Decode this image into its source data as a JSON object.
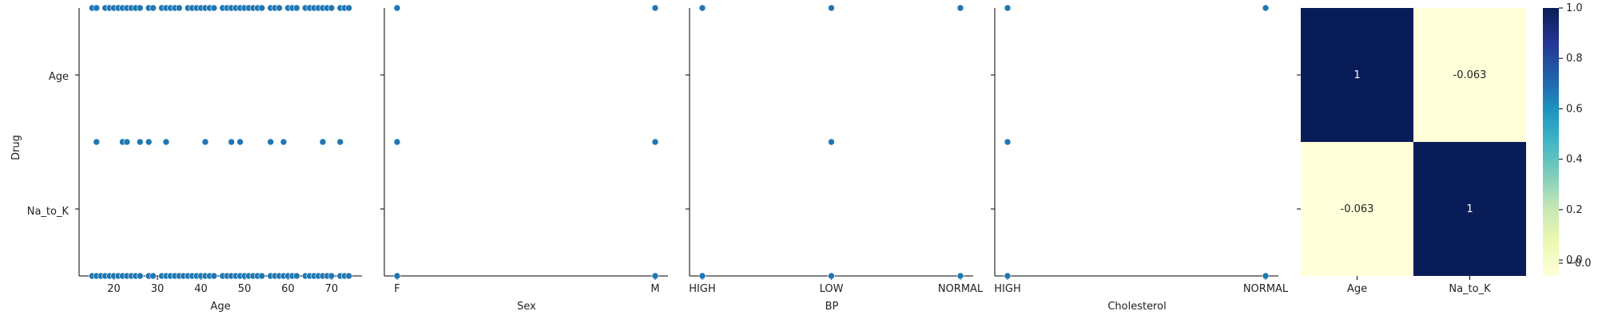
{
  "chart_data": {
    "type": "scatter",
    "ylabel": "Drug",
    "y_tick_labels": [
      "Age",
      "Na_to_K"
    ],
    "ylim": [
      -0.5,
      1.5
    ],
    "colors": {
      "point": "#1f77b4"
    },
    "panels": [
      {
        "xlabel": "Age",
        "x_type": "numeric",
        "xlim": [
          12,
          77
        ],
        "xticks": [
          20,
          30,
          40,
          50,
          60,
          70
        ],
        "points": [
          {
            "x": 15,
            "y": -0.5
          },
          {
            "x": 16,
            "y": -0.5
          },
          {
            "x": 17,
            "y": -0.5
          },
          {
            "x": 18,
            "y": -0.5
          },
          {
            "x": 19,
            "y": -0.5
          },
          {
            "x": 20,
            "y": -0.5
          },
          {
            "x": 21,
            "y": -0.5
          },
          {
            "x": 22,
            "y": -0.5
          },
          {
            "x": 23,
            "y": -0.5
          },
          {
            "x": 24,
            "y": -0.5
          },
          {
            "x": 25,
            "y": -0.5
          },
          {
            "x": 26,
            "y": -0.5
          },
          {
            "x": 28,
            "y": -0.5
          },
          {
            "x": 29,
            "y": -0.5
          },
          {
            "x": 31,
            "y": -0.5
          },
          {
            "x": 32,
            "y": -0.5
          },
          {
            "x": 33,
            "y": -0.5
          },
          {
            "x": 34,
            "y": -0.5
          },
          {
            "x": 35,
            "y": -0.5
          },
          {
            "x": 36,
            "y": -0.5
          },
          {
            "x": 37,
            "y": -0.5
          },
          {
            "x": 38,
            "y": -0.5
          },
          {
            "x": 39,
            "y": -0.5
          },
          {
            "x": 40,
            "y": -0.5
          },
          {
            "x": 41,
            "y": -0.5
          },
          {
            "x": 42,
            "y": -0.5
          },
          {
            "x": 43,
            "y": -0.5
          },
          {
            "x": 45,
            "y": -0.5
          },
          {
            "x": 46,
            "y": -0.5
          },
          {
            "x": 47,
            "y": -0.5
          },
          {
            "x": 48,
            "y": -0.5
          },
          {
            "x": 49,
            "y": -0.5
          },
          {
            "x": 50,
            "y": -0.5
          },
          {
            "x": 51,
            "y": -0.5
          },
          {
            "x": 52,
            "y": -0.5
          },
          {
            "x": 53,
            "y": -0.5
          },
          {
            "x": 54,
            "y": -0.5
          },
          {
            "x": 56,
            "y": -0.5
          },
          {
            "x": 57,
            "y": -0.5
          },
          {
            "x": 58,
            "y": -0.5
          },
          {
            "x": 59,
            "y": -0.5
          },
          {
            "x": 60,
            "y": -0.5
          },
          {
            "x": 61,
            "y": -0.5
          },
          {
            "x": 62,
            "y": -0.5
          },
          {
            "x": 64,
            "y": -0.5
          },
          {
            "x": 65,
            "y": -0.5
          },
          {
            "x": 66,
            "y": -0.5
          },
          {
            "x": 67,
            "y": -0.5
          },
          {
            "x": 68,
            "y": -0.5
          },
          {
            "x": 69,
            "y": -0.5
          },
          {
            "x": 70,
            "y": -0.5
          },
          {
            "x": 72,
            "y": -0.5
          },
          {
            "x": 73,
            "y": -0.5
          },
          {
            "x": 74,
            "y": -0.5
          },
          {
            "x": 16,
            "y": 0.5
          },
          {
            "x": 22,
            "y": 0.5
          },
          {
            "x": 23,
            "y": 0.5
          },
          {
            "x": 26,
            "y": 0.5
          },
          {
            "x": 28,
            "y": 0.5
          },
          {
            "x": 32,
            "y": 0.5
          },
          {
            "x": 41,
            "y": 0.5
          },
          {
            "x": 47,
            "y": 0.5
          },
          {
            "x": 49,
            "y": 0.5
          },
          {
            "x": 56,
            "y": 0.5
          },
          {
            "x": 59,
            "y": 0.5
          },
          {
            "x": 68,
            "y": 0.5
          },
          {
            "x": 72,
            "y": 0.5
          },
          {
            "x": 15,
            "y": 1.5
          },
          {
            "x": 16,
            "y": 1.5
          },
          {
            "x": 18,
            "y": 1.5
          },
          {
            "x": 19,
            "y": 1.5
          },
          {
            "x": 20,
            "y": 1.5
          },
          {
            "x": 21,
            "y": 1.5
          },
          {
            "x": 22,
            "y": 1.5
          },
          {
            "x": 23,
            "y": 1.5
          },
          {
            "x": 24,
            "y": 1.5
          },
          {
            "x": 25,
            "y": 1.5
          },
          {
            "x": 26,
            "y": 1.5
          },
          {
            "x": 28,
            "y": 1.5
          },
          {
            "x": 29,
            "y": 1.5
          },
          {
            "x": 31,
            "y": 1.5
          },
          {
            "x": 32,
            "y": 1.5
          },
          {
            "x": 33,
            "y": 1.5
          },
          {
            "x": 34,
            "y": 1.5
          },
          {
            "x": 35,
            "y": 1.5
          },
          {
            "x": 37,
            "y": 1.5
          },
          {
            "x": 38,
            "y": 1.5
          },
          {
            "x": 39,
            "y": 1.5
          },
          {
            "x": 40,
            "y": 1.5
          },
          {
            "x": 41,
            "y": 1.5
          },
          {
            "x": 42,
            "y": 1.5
          },
          {
            "x": 43,
            "y": 1.5
          },
          {
            "x": 45,
            "y": 1.5
          },
          {
            "x": 46,
            "y": 1.5
          },
          {
            "x": 47,
            "y": 1.5
          },
          {
            "x": 48,
            "y": 1.5
          },
          {
            "x": 49,
            "y": 1.5
          },
          {
            "x": 50,
            "y": 1.5
          },
          {
            "x": 51,
            "y": 1.5
          },
          {
            "x": 52,
            "y": 1.5
          },
          {
            "x": 53,
            "y": 1.5
          },
          {
            "x": 54,
            "y": 1.5
          },
          {
            "x": 56,
            "y": 1.5
          },
          {
            "x": 57,
            "y": 1.5
          },
          {
            "x": 58,
            "y": 1.5
          },
          {
            "x": 60,
            "y": 1.5
          },
          {
            "x": 61,
            "y": 1.5
          },
          {
            "x": 62,
            "y": 1.5
          },
          {
            "x": 64,
            "y": 1.5
          },
          {
            "x": 65,
            "y": 1.5
          },
          {
            "x": 66,
            "y": 1.5
          },
          {
            "x": 67,
            "y": 1.5
          },
          {
            "x": 68,
            "y": 1.5
          },
          {
            "x": 69,
            "y": 1.5
          },
          {
            "x": 70,
            "y": 1.5
          },
          {
            "x": 72,
            "y": 1.5
          },
          {
            "x": 73,
            "y": 1.5
          },
          {
            "x": 74,
            "y": 1.5
          }
        ]
      },
      {
        "xlabel": "Sex",
        "x_type": "categorical",
        "categories": [
          "F",
          "M"
        ],
        "points": [
          {
            "x": "F",
            "y": -0.5
          },
          {
            "x": "M",
            "y": -0.5
          },
          {
            "x": "F",
            "y": 0.5
          },
          {
            "x": "M",
            "y": 0.5
          },
          {
            "x": "F",
            "y": 1.5
          },
          {
            "x": "M",
            "y": 1.5
          }
        ]
      },
      {
        "xlabel": "BP",
        "x_type": "categorical",
        "categories": [
          "HIGH",
          "LOW",
          "NORMAL"
        ],
        "points": [
          {
            "x": "HIGH",
            "y": -0.5
          },
          {
            "x": "LOW",
            "y": -0.5
          },
          {
            "x": "NORMAL",
            "y": -0.5
          },
          {
            "x": "LOW",
            "y": 0.5
          },
          {
            "x": "HIGH",
            "y": 1.5
          },
          {
            "x": "LOW",
            "y": 1.5
          },
          {
            "x": "NORMAL",
            "y": 1.5
          }
        ]
      },
      {
        "xlabel": "Cholesterol",
        "x_type": "categorical",
        "categories": [
          "HIGH",
          "NORMAL"
        ],
        "points": [
          {
            "x": "HIGH",
            "y": -0.5
          },
          {
            "x": "NORMAL",
            "y": -0.5
          },
          {
            "x": "HIGH",
            "y": 0.5
          },
          {
            "x": "HIGH",
            "y": 1.5
          },
          {
            "x": "NORMAL",
            "y": 1.5
          }
        ]
      }
    ],
    "heatmap": {
      "type": "heatmap",
      "rows": [
        "Age",
        "Na_to_K"
      ],
      "cols": [
        "Age",
        "Na_to_K"
      ],
      "values": [
        [
          1,
          -0.063
        ],
        [
          -0.063,
          1
        ]
      ],
      "labels": [
        [
          "1",
          "-0.063"
        ],
        [
          "-0.063",
          "1"
        ]
      ],
      "colormap": "YlGnBu",
      "colorbar": {
        "range": [
          -0.063,
          1
        ],
        "ticks": [
          0.0,
          0.2,
          0.4,
          0.6,
          0.8,
          1.0
        ],
        "tick_labels": [
          "0.0",
          "0.2",
          "0.4",
          "0.6",
          "0.8",
          "1.0"
        ],
        "bottom_tick_label": "−0.0"
      }
    }
  }
}
